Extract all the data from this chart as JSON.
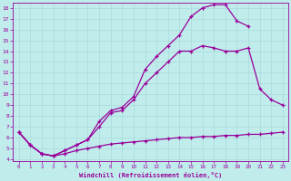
{
  "xlabel": "Windchill (Refroidissement éolien,°C)",
  "bg_color": "#c0ecec",
  "line_color": "#990099",
  "xlim": [
    -0.5,
    23.5
  ],
  "ylim": [
    3.8,
    18.5
  ],
  "xticks": [
    0,
    1,
    2,
    3,
    4,
    5,
    6,
    7,
    8,
    9,
    10,
    11,
    12,
    13,
    14,
    15,
    16,
    17,
    18,
    19,
    20,
    21,
    22,
    23
  ],
  "yticks": [
    4,
    5,
    6,
    7,
    8,
    9,
    10,
    11,
    12,
    13,
    14,
    15,
    16,
    17,
    18
  ],
  "grid_color": "#a8dada",
  "curve_flat_x": [
    0,
    1,
    2,
    3,
    4,
    5,
    6,
    7,
    8,
    9,
    10,
    11,
    12,
    13,
    14,
    15,
    16,
    17,
    18,
    19,
    20,
    21,
    22,
    23
  ],
  "curve_flat_y": [
    6.5,
    5.3,
    4.5,
    4.3,
    4.5,
    4.8,
    5.0,
    5.2,
    5.4,
    5.5,
    5.6,
    5.7,
    5.8,
    5.9,
    6.0,
    6.0,
    6.1,
    6.1,
    6.2,
    6.2,
    6.3,
    6.3,
    6.4,
    6.5
  ],
  "curve_mid_x": [
    0,
    1,
    2,
    3,
    4,
    5,
    6,
    7,
    8,
    9,
    10,
    11,
    12,
    13,
    14,
    15,
    16,
    17,
    18,
    19,
    20,
    21,
    22,
    23
  ],
  "curve_mid_y": [
    6.5,
    5.3,
    4.5,
    4.3,
    4.8,
    5.3,
    5.8,
    7.0,
    8.3,
    8.5,
    9.5,
    11.0,
    12.0,
    13.0,
    14.0,
    14.0,
    14.5,
    14.3,
    14.0,
    14.0,
    14.3,
    10.5,
    9.5,
    9.0
  ],
  "curve_top_x": [
    0,
    1,
    2,
    3,
    4,
    5,
    6,
    7,
    8,
    9,
    10,
    11,
    12,
    13,
    14,
    15,
    16,
    17,
    18,
    19,
    20
  ],
  "curve_top_y": [
    6.5,
    5.3,
    4.5,
    4.3,
    4.8,
    5.3,
    5.8,
    7.5,
    8.5,
    8.8,
    9.8,
    12.3,
    13.5,
    14.5,
    15.5,
    17.2,
    18.0,
    18.3,
    18.3,
    16.8,
    16.3
  ]
}
